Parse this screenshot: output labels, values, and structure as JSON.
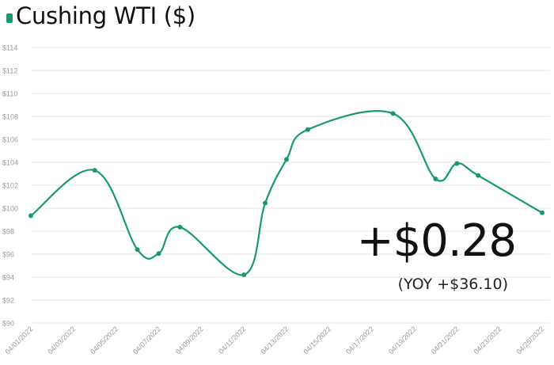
{
  "header": {
    "title": "Cushing WTI ($)"
  },
  "kpi": {
    "change": "+$0.28",
    "yoy": "(YOY +$36.10)"
  },
  "colors": {
    "series": "#1a9a6c",
    "grid": "#e6e6e6",
    "tick_text": "#9a9a9a"
  },
  "chart_data": {
    "type": "line",
    "title": "Cushing WTI ($)",
    "x": [
      "04/01/2022",
      "04/04/2022",
      "04/06/2022",
      "04/07/2022",
      "04/08/2022",
      "04/11/2022",
      "04/12/2022",
      "04/13/2022",
      "04/14/2022",
      "04/18/2022",
      "04/20/2022",
      "04/21/2022",
      "04/22/2022",
      "04/25/2022"
    ],
    "series": [
      {
        "values": [
          99.35,
          103.3,
          96.4,
          96.05,
          98.35,
          94.2,
          100.45,
          104.25,
          106.85,
          108.25,
          102.55,
          103.9,
          102.85,
          99.6
        ],
        "color": "#1a9a6c"
      }
    ],
    "xticks": [
      "04/01/2022",
      "04/03/2022",
      "04/05/2022",
      "04/07/2022",
      "04/09/2022",
      "04/11/2022",
      "04/13/2022",
      "04/15/2022",
      "04/17/2022",
      "04/19/2022",
      "04/21/2022",
      "04/23/2022",
      "04/25/2022"
    ],
    "yticks": [
      "$90",
      "$92",
      "$94",
      "$96",
      "$98",
      "$100",
      "$102",
      "$104",
      "$106",
      "$108",
      "$110",
      "$112",
      "$114"
    ],
    "ylim": [
      90,
      114
    ],
    "xlim": [
      "04/01/2022",
      "04/25/2022"
    ],
    "grid": true,
    "legend": "top-left"
  }
}
